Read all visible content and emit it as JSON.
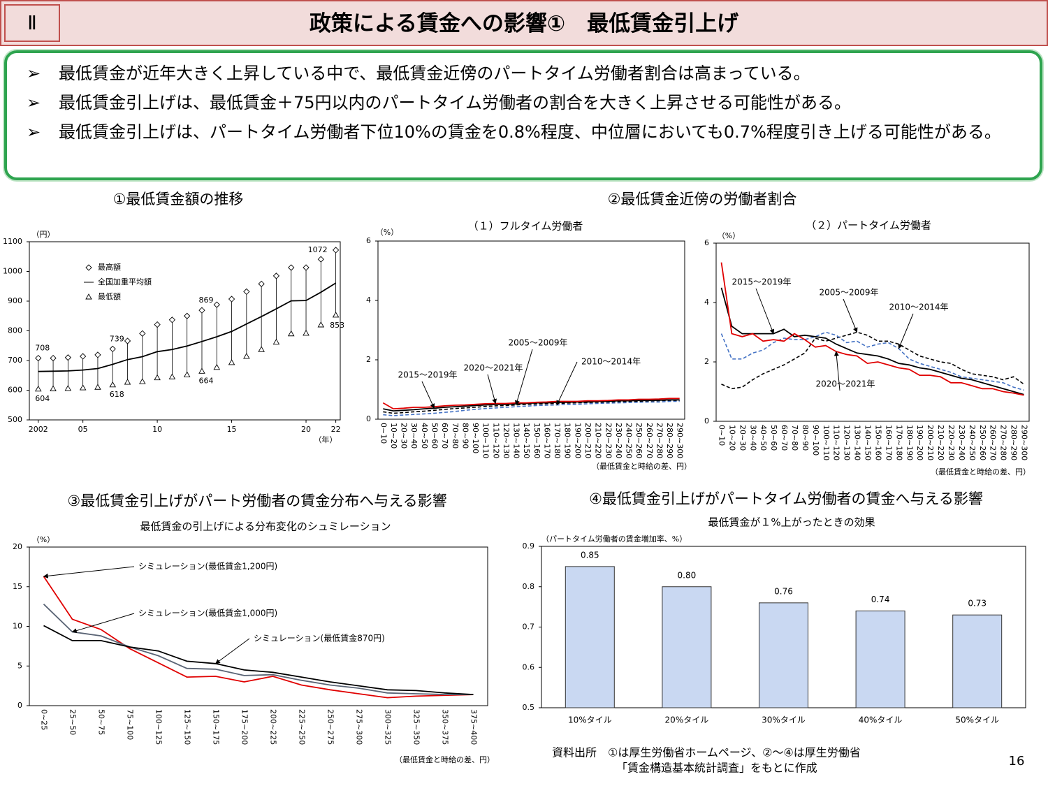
{
  "header": {
    "section": "Ⅱ",
    "title": "政策による賃金への影響①　最低賃金引上げ"
  },
  "bullets": [
    "最低賃金が近年大きく上昇している中で、最低賃金近傍のパートタイム労働者割合は高まっている。",
    "最低賃金引上げは、最低賃金＋75円以内のパートタイム労働者の割合を大きく上昇させる可能性がある。",
    "最低賃金引上げは、パートタイム労働者下位10%の賃金を0.8%程度、中位層においても0.7%程度引き上げる可能性がある。"
  ],
  "sections": [
    "①最低賃金額の推移",
    "②最低賃金近傍の労働者割合",
    "③最低賃金引上げがパート労働者の賃金分布へ与える影響",
    "④最低賃金引上げがパートタイム労働者の賃金へ与える影響"
  ],
  "chart_data": [
    {
      "type": "line",
      "ylabel": "（円）",
      "xlabel": "（年）",
      "x": [
        2002,
        2003,
        2004,
        2005,
        2006,
        2007,
        2008,
        2009,
        2010,
        2011,
        2012,
        2013,
        2014,
        2015,
        2016,
        2017,
        2018,
        2019,
        2020,
        2021,
        2022
      ],
      "xlim": [
        2001.4,
        2022.3
      ],
      "xticks": [
        2002,
        {
          "value": 2005,
          "label": "05"
        },
        {
          "value": 2010,
          "label": "10"
        },
        {
          "value": 2015,
          "label": "15"
        },
        {
          "value": 2020,
          "label": "20"
        },
        {
          "value": 2022,
          "label": "22"
        }
      ],
      "ylim": [
        500,
        1100
      ],
      "yticks": [
        500,
        600,
        700,
        800,
        900,
        1000,
        1100
      ],
      "legend": "upper left",
      "hi_lo_lines": true,
      "series": [
        {
          "name": "最高額",
          "color": "#000000",
          "mark": "diamond",
          "values": [
            708,
            708,
            710,
            714,
            719,
            739,
            766,
            791,
            821,
            837,
            850,
            869,
            888,
            907,
            932,
            958,
            985,
            1013,
            1013,
            1041,
            1072
          ],
          "value_labels": [
            "708",
            null,
            null,
            null,
            null,
            "739",
            null,
            null,
            null,
            null,
            null,
            "869",
            null,
            null,
            null,
            null,
            null,
            null,
            null,
            null,
            "1072"
          ]
        },
        {
          "name": "全国加重平均額",
          "color": "#000000",
          "mark": "line",
          "values": [
            663,
            664,
            665,
            668,
            673,
            687,
            703,
            713,
            730,
            737,
            749,
            764,
            780,
            798,
            823,
            848,
            874,
            901,
            902,
            930,
            961
          ]
        },
        {
          "name": "最低額",
          "color": "#000000",
          "mark": "triangle",
          "values": [
            604,
            605,
            606,
            608,
            610,
            618,
            627,
            629,
            642,
            645,
            652,
            664,
            677,
            693,
            714,
            737,
            762,
            790,
            792,
            820,
            853
          ],
          "value_labels": [
            "604",
            null,
            null,
            null,
            null,
            "618",
            null,
            null,
            null,
            null,
            null,
            "664",
            null,
            null,
            null,
            null,
            null,
            null,
            null,
            null,
            "853"
          ]
        }
      ]
    },
    {
      "type": "line",
      "title": "（１）フルタイム労働者",
      "ylabel": "（%）",
      "xlabel": "（最低賃金と時給の差、円）",
      "categories": [
        "0~10",
        "10~20",
        "20~30",
        "30~40",
        "40~50",
        "50~60",
        "60~70",
        "70~80",
        "80~90",
        "90~100",
        "100~110",
        "110~120",
        "120~130",
        "130~140",
        "140~150",
        "150~160",
        "160~170",
        "170~180",
        "180~190",
        "190~200",
        "200~210",
        "210~220",
        "220~230",
        "230~240",
        "240~250",
        "250~260",
        "260~270",
        "270~280",
        "280~290",
        "290~300"
      ],
      "ylim": [
        0,
        6
      ],
      "yticks": [
        0,
        2,
        4,
        6
      ],
      "series": [
        {
          "name": "2005～2009年",
          "color": "#000000",
          "dash": true,
          "values": [
            0.25,
            0.2,
            0.22,
            0.25,
            0.27,
            0.3,
            0.33,
            0.36,
            0.38,
            0.4,
            0.43,
            0.45,
            0.46,
            0.48,
            0.5,
            0.51,
            0.52,
            0.53,
            0.54,
            0.55,
            0.56,
            0.57,
            0.58,
            0.59,
            0.6,
            0.6,
            0.61,
            0.62,
            0.63,
            0.63
          ]
        },
        {
          "name": "2010～2014年",
          "color": "#4472c4",
          "dash": true,
          "values": [
            0.15,
            0.12,
            0.14,
            0.16,
            0.18,
            0.2,
            0.23,
            0.26,
            0.3,
            0.33,
            0.36,
            0.38,
            0.4,
            0.42,
            0.44,
            0.46,
            0.47,
            0.48,
            0.5,
            0.5,
            0.52,
            0.53,
            0.54,
            0.55,
            0.56,
            0.57,
            0.58,
            0.58,
            0.6,
            0.6
          ]
        },
        {
          "name": "2015～2019年",
          "color": "#000000",
          "dash": false,
          "values": [
            0.35,
            0.28,
            0.3,
            0.32,
            0.35,
            0.37,
            0.4,
            0.42,
            0.44,
            0.46,
            0.48,
            0.5,
            0.5,
            0.52,
            0.53,
            0.55,
            0.55,
            0.57,
            0.57,
            0.58,
            0.58,
            0.6,
            0.6,
            0.62,
            0.62,
            0.63,
            0.63,
            0.64,
            0.65,
            0.65
          ]
        },
        {
          "name": "2020～2021年",
          "color": "#e00000",
          "dash": false,
          "values": [
            0.55,
            0.35,
            0.37,
            0.4,
            0.4,
            0.42,
            0.45,
            0.47,
            0.48,
            0.5,
            0.52,
            0.53,
            0.53,
            0.55,
            0.55,
            0.57,
            0.58,
            0.6,
            0.6,
            0.6,
            0.62,
            0.62,
            0.63,
            0.65,
            0.65,
            0.67,
            0.67,
            0.68,
            0.7,
            0.7
          ]
        }
      ]
    },
    {
      "type": "line",
      "title": "（２）パートタイム労働者",
      "ylabel": "（%）",
      "xlabel": "（最低賃金と時給の差、円）",
      "categories": [
        "0~10",
        "10~20",
        "20~30",
        "30~40",
        "40~50",
        "50~60",
        "60~70",
        "70~80",
        "80~90",
        "90~100",
        "100~110",
        "110~120",
        "120~130",
        "130~140",
        "140~150",
        "150~160",
        "160~170",
        "170~180",
        "180~190",
        "190~200",
        "200~210",
        "210~220",
        "220~230",
        "230~240",
        "240~250",
        "250~260",
        "260~270",
        "270~280",
        "280~290",
        "290~300"
      ],
      "ylim": [
        0,
        6
      ],
      "yticks": [
        0,
        2,
        4,
        6
      ],
      "series": [
        {
          "name": "2005～2009年",
          "color": "#000000",
          "dash": true,
          "values": [
            1.25,
            1.1,
            1.15,
            1.4,
            1.6,
            1.75,
            1.9,
            2.1,
            2.3,
            2.8,
            2.7,
            2.8,
            2.9,
            3.0,
            2.9,
            2.7,
            2.7,
            2.6,
            2.4,
            2.2,
            2.1,
            2.0,
            1.95,
            1.75,
            1.6,
            1.55,
            1.5,
            1.4,
            1.5,
            1.25
          ]
        },
        {
          "name": "2010～2014年",
          "color": "#4472c4",
          "dash": true,
          "values": [
            2.95,
            2.1,
            2.1,
            2.3,
            2.4,
            2.65,
            2.8,
            2.75,
            2.75,
            2.85,
            3.0,
            2.9,
            2.65,
            2.7,
            2.5,
            2.6,
            2.65,
            2.45,
            2.1,
            1.95,
            1.85,
            1.75,
            1.65,
            1.5,
            1.45,
            1.4,
            1.35,
            1.3,
            1.15,
            1.05
          ]
        },
        {
          "name": "2015～2019年",
          "color": "#000000",
          "dash": false,
          "values": [
            4.5,
            3.2,
            2.95,
            2.95,
            2.95,
            2.95,
            3.1,
            2.85,
            2.9,
            2.85,
            2.8,
            2.6,
            2.45,
            2.3,
            2.25,
            2.2,
            2.1,
            1.95,
            1.9,
            1.8,
            1.75,
            1.65,
            1.55,
            1.45,
            1.4,
            1.3,
            1.2,
            1.1,
            1.0,
            0.9
          ]
        },
        {
          "name": "2020～2021年",
          "color": "#e00000",
          "dash": false,
          "values": [
            5.35,
            2.95,
            2.85,
            2.95,
            2.7,
            2.75,
            2.7,
            2.95,
            2.75,
            2.5,
            2.55,
            2.35,
            2.25,
            2.2,
            1.95,
            2.0,
            1.9,
            1.8,
            1.75,
            1.55,
            1.55,
            1.5,
            1.3,
            1.3,
            1.2,
            1.1,
            1.1,
            1.0,
            0.95,
            0.88
          ]
        }
      ]
    },
    {
      "type": "line",
      "title": "最低賃金の引上げによる分布変化のシュミレーション",
      "ylabel": "（%）",
      "xlabel": "（最低賃金と時給の差、円）",
      "categories": [
        "0~25",
        "25~50",
        "50~75",
        "75~100",
        "100~125",
        "125~150",
        "150~175",
        "175~200",
        "200~225",
        "225~250",
        "250~275",
        "275~300",
        "300~325",
        "325~350",
        "350~375",
        "375~400"
      ],
      "ylim": [
        0,
        20
      ],
      "yticks": [
        0,
        5,
        10,
        15,
        20
      ],
      "series": [
        {
          "name": "シミュレーション(最低賃金1,200円)",
          "color": "#e00000",
          "dash": false,
          "values": [
            16.3,
            10.9,
            9.6,
            7.2,
            5.4,
            3.6,
            3.7,
            3.0,
            3.7,
            2.6,
            2.0,
            1.5,
            1.0,
            1.2,
            1.3,
            1.4
          ]
        },
        {
          "name": "シミュレーション(最低賃金1,000円)",
          "color": "#5a6475",
          "dash": false,
          "values": [
            12.8,
            9.3,
            8.8,
            7.4,
            6.3,
            4.7,
            4.6,
            3.8,
            3.9,
            3.2,
            2.6,
            2.2,
            1.6,
            1.5,
            1.4,
            1.4
          ]
        },
        {
          "name": "シミュレーション(最低賃金870円)",
          "color": "#000000",
          "dash": false,
          "values": [
            10.1,
            8.2,
            8.2,
            7.4,
            6.9,
            5.6,
            5.3,
            4.5,
            4.2,
            3.6,
            3.0,
            2.5,
            2.0,
            1.9,
            1.6,
            1.4
          ]
        }
      ]
    },
    {
      "type": "bar",
      "title": "最低賃金が１%上がったときの効果",
      "ylabel": "（パートタイム労働者の賃金増加率、%）",
      "categories": [
        "10%タイル",
        "20%タイル",
        "30%タイル",
        "40%タイル",
        "50%タイル"
      ],
      "values": [
        0.85,
        0.8,
        0.76,
        0.74,
        0.73
      ],
      "value_labels": [
        "0.85",
        "0.80",
        "0.76",
        "0.74",
        "0.73"
      ],
      "color": "#c9d8f2",
      "ylim": [
        0.5,
        0.9
      ],
      "yticks": [
        0.5,
        0.6,
        0.7,
        0.8,
        0.9
      ]
    }
  ],
  "source": [
    "資料出所　①は厚生労働省ホームページ、②～④は厚生労働省",
    "「賃金構造基本統計調査」をもとに作成"
  ],
  "page_number": 16
}
